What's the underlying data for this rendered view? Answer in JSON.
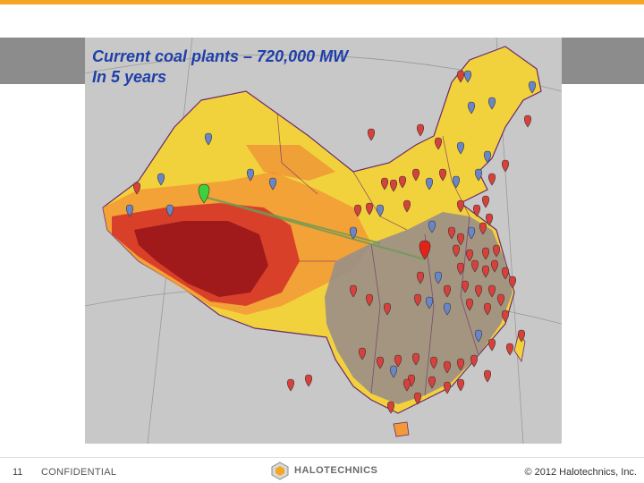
{
  "slide": {
    "caption_line1": "Current coal plants – 720,000 MW",
    "caption_line2": "In 5 years"
  },
  "map": {
    "legend_colors": {
      "low": "#f6e04a",
      "mid": "#f4a23a",
      "high": "#e0522a",
      "very_high": "#a8181c",
      "existing_plants_region": "#9c8f87"
    },
    "marker_colors": {
      "coal_plant": "#d8403c",
      "planned_plant": "#6b86c8",
      "highlight_green": "#3ed13e",
      "highlight_red": "#e32218"
    },
    "icons": [
      "map-pin-icon"
    ]
  },
  "footer": {
    "page_number": "11",
    "label": "CONFIDENTIAL",
    "logo_text": "HALOTECHNICS",
    "copyright": "© 2012 Halotechnics, Inc."
  }
}
